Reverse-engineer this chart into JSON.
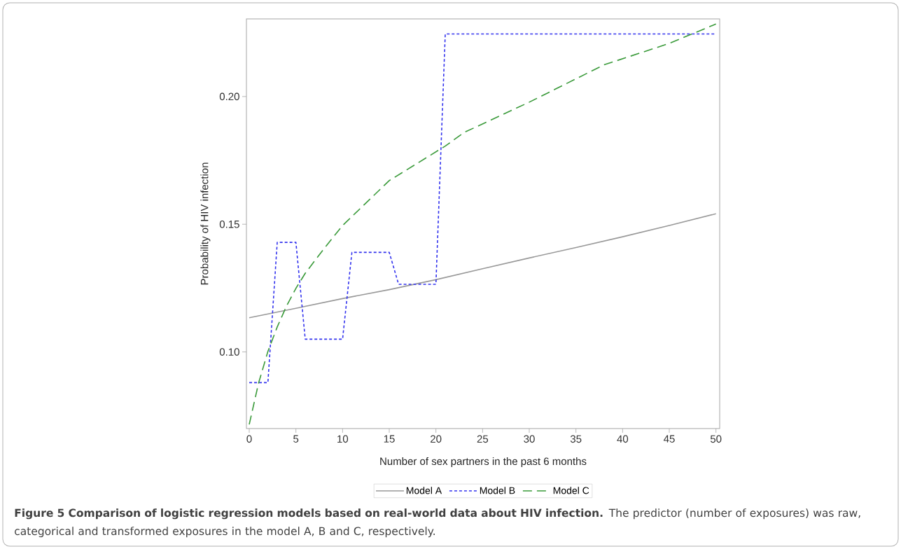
{
  "chart_data": {
    "type": "line",
    "xlabel": "Number of sex partners in the past 6 months",
    "ylabel": "Probability of HIV infection",
    "xlim": [
      -0.3,
      50.4
    ],
    "ylim": [
      0.07,
      0.2304
    ],
    "xticks": [
      0,
      5,
      10,
      15,
      20,
      25,
      30,
      35,
      40,
      45,
      50
    ],
    "yticks": [
      {
        "value": 0.1,
        "label": "0.10"
      },
      {
        "value": 0.15,
        "label": "0.15"
      },
      {
        "value": 0.2,
        "label": "0.20"
      }
    ],
    "legend": "bottom",
    "series": [
      {
        "name": "Model A",
        "color": "#999999",
        "line_style": "solid",
        "x": [
          0,
          5,
          10,
          15,
          20,
          25,
          30,
          35,
          40,
          45,
          50
        ],
        "values": [
          0.1134,
          0.1171,
          0.1209,
          0.1244,
          0.1283,
          0.1326,
          0.1368,
          0.1409,
          0.1451,
          0.1495,
          0.1541
        ]
      },
      {
        "name": "Model B",
        "color": "#3333ee",
        "line_style": "dotted",
        "x": [
          0,
          2,
          3,
          5,
          6,
          10,
          11,
          15,
          16,
          20,
          21,
          50
        ],
        "values": [
          0.088,
          0.088,
          0.1429,
          0.1429,
          0.105,
          0.105,
          0.139,
          0.139,
          0.1265,
          0.1265,
          0.2245,
          0.2245
        ]
      },
      {
        "name": "Model C",
        "color": "#3a9a3a",
        "line_style": "dashed",
        "x": [
          0,
          1,
          2,
          3,
          4,
          5,
          6,
          8,
          10,
          15,
          21,
          23,
          30,
          38,
          45,
          50
        ],
        "values": [
          0.0716,
          0.0878,
          0.1002,
          0.1098,
          0.118,
          0.1249,
          0.1308,
          0.1404,
          0.1495,
          0.1671,
          0.1806,
          0.1859,
          0.1978,
          0.2124,
          0.2208,
          0.2284
        ]
      }
    ],
    "annotations": [
      "**Figure 5 Comparison of logistic regression models based on real-world data about HIV infection.** The predictor (number of exposures) was raw, categorical and transformed exposures in the model A, B and C, respectively."
    ]
  }
}
